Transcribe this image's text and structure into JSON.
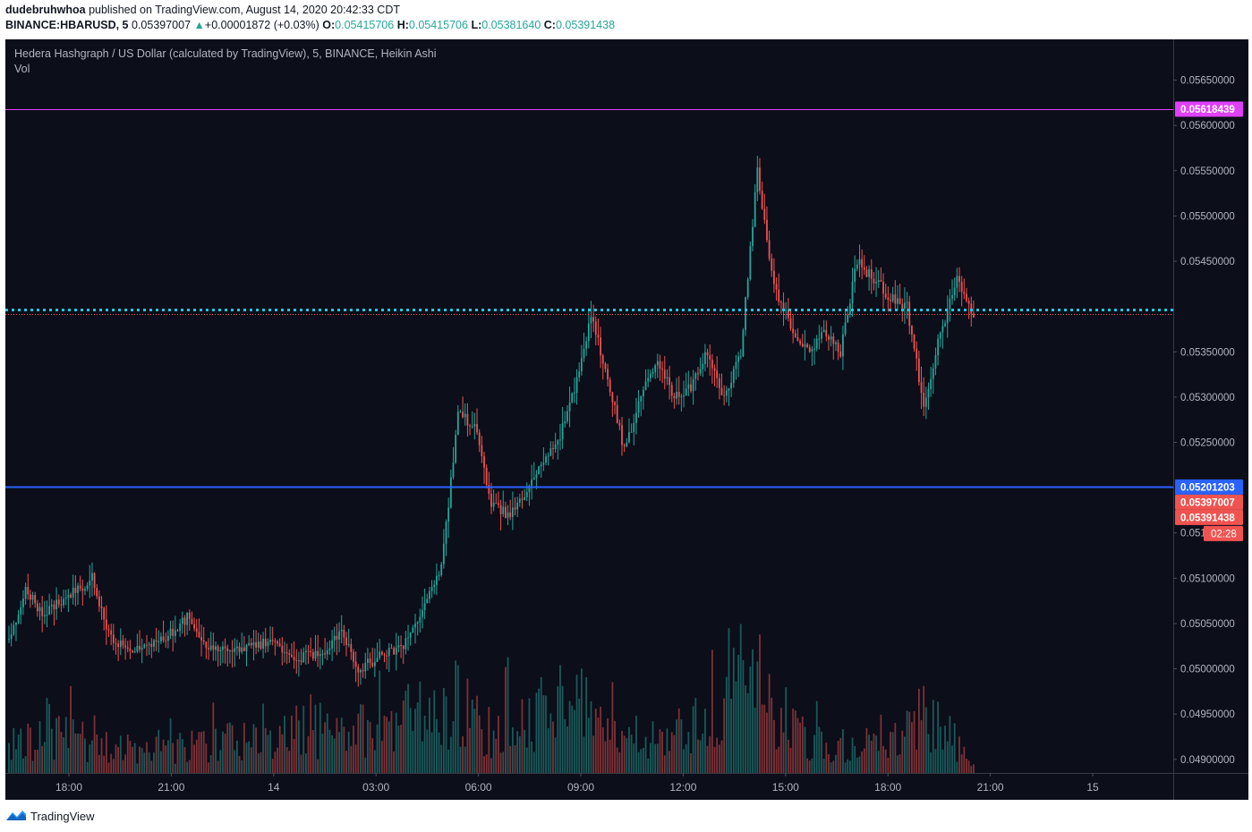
{
  "header": {
    "author": "dudebruhwhoa",
    "published_text": "published on TradingView.com, August 14, 2020 20:42:33 CDT",
    "symbol": "BINANCE:HBARUSD, 5",
    "last": "0.05397007",
    "change_arrow": "▲",
    "change": "+0.00001872 (+0.03%)",
    "o_label": "O:",
    "o": "0.05415706",
    "h_label": "H:",
    "h": "0.05415706",
    "l_label": "L:",
    "l": "0.05381640",
    "c_label": "C:",
    "c": "0.05391438"
  },
  "legend": {
    "main": "Hedera Hashgraph / US Dollar (calculated by TradingView), 5, BINANCE, Heikin Ashi",
    "volume": "Vol"
  },
  "footer": {
    "brand": "TradingView",
    "logo_icon": "tradingview-logo-icon"
  },
  "colors": {
    "background": "#0c0e1a",
    "up": "#26a69a",
    "down": "#ef5350",
    "axis_text": "#b2b5be",
    "resistance": "#e040fb",
    "support": "#2962ff",
    "current_price": "#26c6da"
  },
  "chart_data": {
    "type": "candlestick",
    "style": "Heikin Ashi",
    "interval": "5",
    "title": "Hedera Hashgraph / US Dollar (calculated by TradingView), 5, BINANCE, Heikin Ashi",
    "y_ticks": [
      "0.05650000",
      "0.05600000",
      "0.05550000",
      "0.05500000",
      "0.05450000",
      "0.05350000",
      "0.05300000",
      "0.05250000",
      "0.05150000",
      "0.05100000",
      "0.05050000",
      "0.05000000",
      "0.04950000",
      "0.04900000"
    ],
    "ylim": [
      0.04885,
      0.05695
    ],
    "x_ticks": [
      "18:00",
      "21:00",
      "14",
      "03:00",
      "06:00",
      "09:00",
      "12:00",
      "15:00",
      "18:00",
      "21:00",
      "15"
    ],
    "horizontal_lines": [
      {
        "label": "0.05618439",
        "value": 0.05618439,
        "color": "#e040fb",
        "style": "solid"
      },
      {
        "label": "0.05201203",
        "value": 0.05201203,
        "color": "#2962ff",
        "style": "solid"
      },
      {
        "label": "0.05397007",
        "value": 0.05397007,
        "color": "#26c6da",
        "style": "dotted"
      },
      {
        "label": "0.05391438",
        "value": 0.05391438,
        "color": "#ef5350",
        "style": "dotted"
      }
    ],
    "countdown": "02:28",
    "grid": false,
    "price_anchors": [
      [
        0,
        0.0503
      ],
      [
        7,
        0.0509
      ],
      [
        14,
        0.0506
      ],
      [
        25,
        0.0508
      ],
      [
        35,
        0.051
      ],
      [
        42,
        0.0504
      ],
      [
        49,
        0.0502
      ],
      [
        60,
        0.0503
      ],
      [
        69,
        0.0504
      ],
      [
        76,
        0.0506
      ],
      [
        84,
        0.0502
      ],
      [
        95,
        0.0502
      ],
      [
        109,
        0.0503
      ],
      [
        120,
        0.0501
      ],
      [
        133,
        0.0502
      ],
      [
        140,
        0.0504
      ],
      [
        147,
        0.05
      ],
      [
        154,
        0.0501
      ],
      [
        168,
        0.0503
      ],
      [
        182,
        0.0511
      ],
      [
        189,
        0.0528
      ],
      [
        196,
        0.0527
      ],
      [
        203,
        0.0518
      ],
      [
        210,
        0.0517
      ],
      [
        217,
        0.0519
      ],
      [
        224,
        0.0523
      ],
      [
        231,
        0.0525
      ],
      [
        238,
        0.0531
      ],
      [
        245,
        0.0539
      ],
      [
        252,
        0.0532
      ],
      [
        259,
        0.0524
      ],
      [
        266,
        0.053
      ],
      [
        273,
        0.0534
      ],
      [
        280,
        0.053
      ],
      [
        287,
        0.0531
      ],
      [
        294,
        0.0535
      ],
      [
        301,
        0.053
      ],
      [
        308,
        0.0535
      ],
      [
        315,
        0.0555
      ],
      [
        322,
        0.0542
      ],
      [
        329,
        0.0538
      ],
      [
        336,
        0.0535
      ],
      [
        343,
        0.0537
      ],
      [
        350,
        0.0535
      ],
      [
        357,
        0.0545
      ],
      [
        364,
        0.0543
      ],
      [
        371,
        0.0541
      ],
      [
        378,
        0.054
      ],
      [
        385,
        0.0529
      ],
      [
        392,
        0.0537
      ],
      [
        399,
        0.0543
      ],
      [
        406,
        0.0539
      ]
    ],
    "volume": {
      "series_name": "Vol",
      "relative_peaks": [
        [
          0,
          0.25
        ],
        [
          14,
          0.35
        ],
        [
          60,
          0.2
        ],
        [
          100,
          0.3
        ],
        [
          140,
          0.35
        ],
        [
          175,
          0.55
        ],
        [
          189,
          0.65
        ],
        [
          203,
          0.35
        ],
        [
          238,
          0.7
        ],
        [
          252,
          0.35
        ],
        [
          280,
          0.3
        ],
        [
          315,
          1.0
        ],
        [
          322,
          0.45
        ],
        [
          350,
          0.25
        ],
        [
          357,
          0.25
        ],
        [
          371,
          0.25
        ],
        [
          385,
          0.6
        ],
        [
          392,
          0.45
        ],
        [
          406,
          0.05
        ]
      ]
    }
  }
}
